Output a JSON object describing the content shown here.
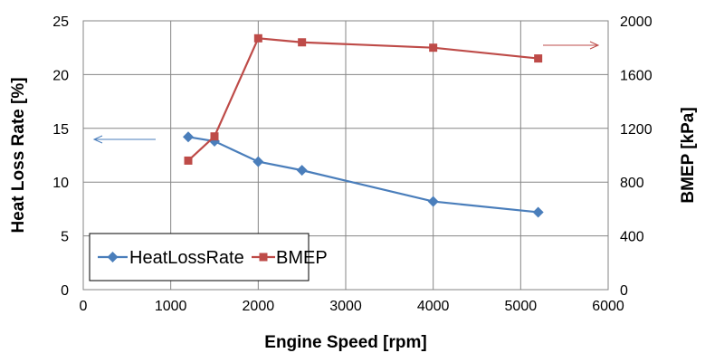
{
  "chart_data": {
    "type": "line",
    "xlabel": "Engine Speed [rpm]",
    "ylabel": "Heat Loss Rate [%]",
    "y2label": "BMEP [kPa]",
    "xlim": [
      0,
      6000
    ],
    "ylim": [
      0,
      25
    ],
    "y2lim": [
      0,
      2000
    ],
    "x_ticks": [
      "0",
      "1000",
      "2000",
      "3000",
      "4000",
      "5000",
      "6000"
    ],
    "y_ticks": [
      "0",
      "5",
      "10",
      "15",
      "20",
      "25"
    ],
    "y2_ticks": [
      "0",
      "400",
      "800",
      "1200",
      "1600",
      "2000"
    ],
    "grid": true,
    "legend_placement": "bottom-left",
    "series": [
      {
        "name": "HeatLossRate",
        "axis": "left",
        "color": "#4A7EBB",
        "marker": "diamond",
        "x": [
          1200,
          1500,
          2000,
          2500,
          4000,
          5200
        ],
        "y": [
          14.2,
          13.8,
          11.9,
          11.1,
          8.2,
          7.2
        ]
      },
      {
        "name": "BMEP",
        "axis": "right",
        "color": "#BE4B48",
        "marker": "square",
        "x": [
          1200,
          1500,
          2000,
          2500,
          4000,
          5200
        ],
        "y": [
          960,
          1140,
          1870,
          1840,
          1800,
          1720
        ]
      }
    ]
  }
}
